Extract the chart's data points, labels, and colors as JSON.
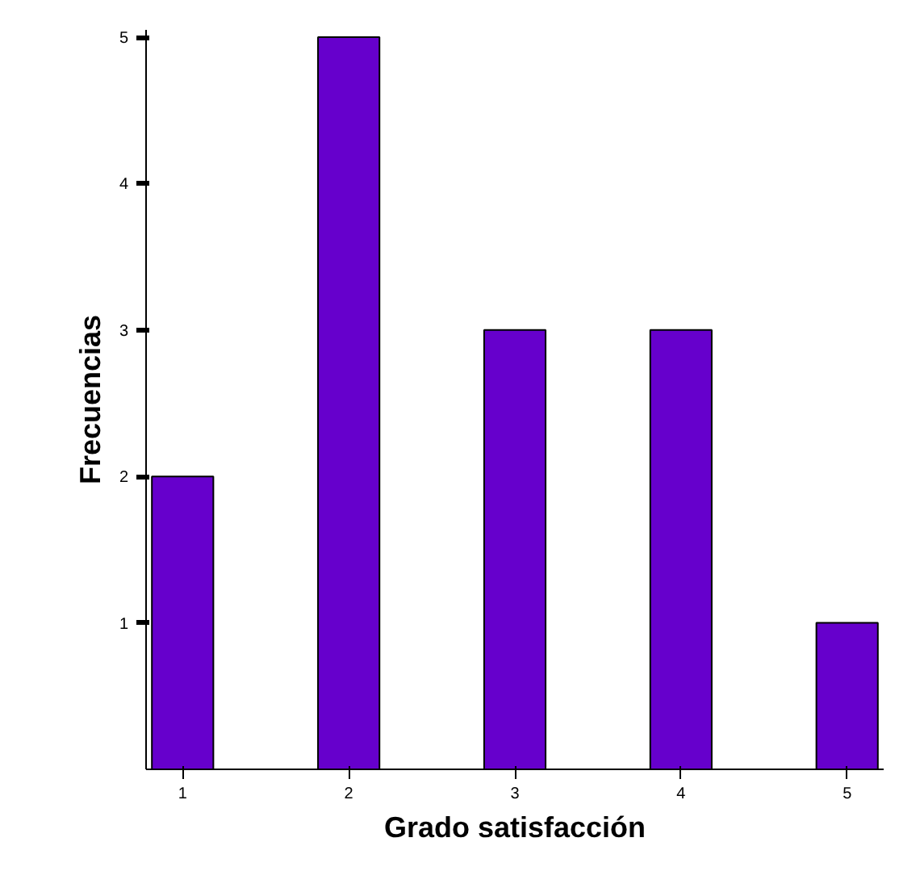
{
  "chart_data": {
    "type": "bar",
    "xlabel": "Grado satisfacción",
    "ylabel": "Frecuencias",
    "categories": [
      "1",
      "2",
      "3",
      "4",
      "5"
    ],
    "values": [
      2,
      5,
      3,
      3,
      1
    ],
    "color": "#6600cc",
    "ylim": [
      0,
      5.05
    ],
    "yticks": [
      1,
      2,
      3,
      4,
      5
    ],
    "grid": false
  }
}
